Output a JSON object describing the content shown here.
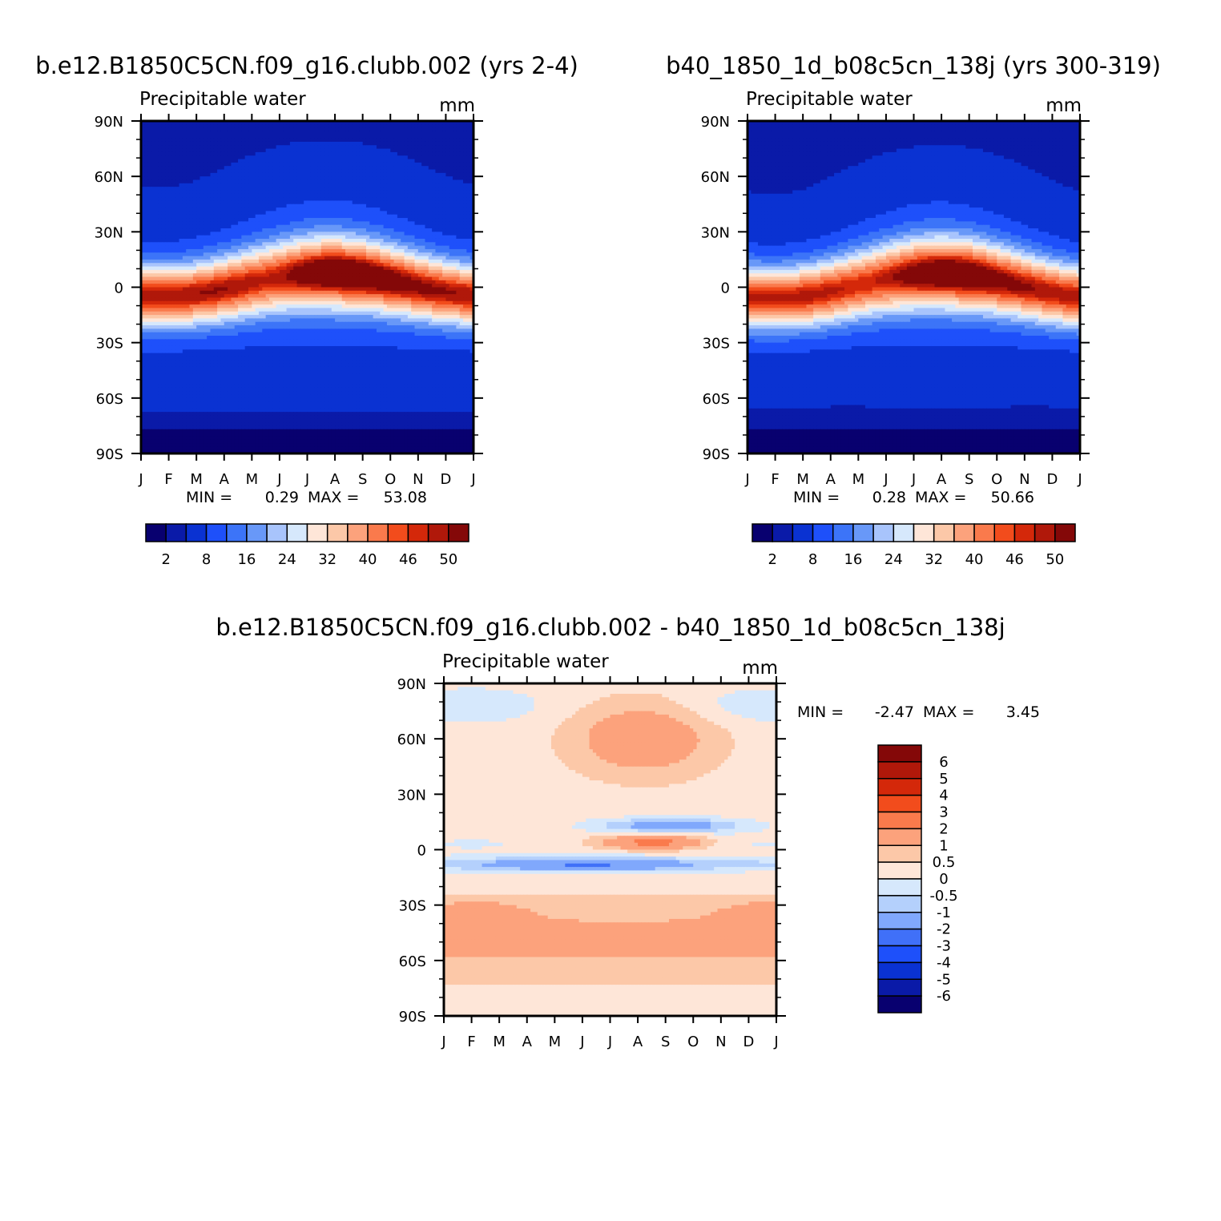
{
  "header": {
    "left_title": "b.e12.B1850C5CN.f09_g16.clubb.002 (yrs 2-4)",
    "right_title": "b40_1850_1d_b08c5cn_138j (yrs 300-319)",
    "diff_title": "b.e12.B1850C5CN.f09_g16.clubb.002 - b40_1850_1d_b08c5cn_138j"
  },
  "colors": {
    "abs": [
      "#08006f",
      "#0a1aa8",
      "#0a32d2",
      "#1e50fa",
      "#3c74f8",
      "#6898f8",
      "#a8c4fc",
      "#d6e8fc",
      "#fee6d8",
      "#fcc8a8",
      "#fca27c",
      "#fa7a4c",
      "#f24c1c",
      "#d4280a",
      "#b0180a",
      "#840808"
    ],
    "diff": [
      "#08006f",
      "#0a1aa8",
      "#0a32d2",
      "#1e50fa",
      "#4070f8",
      "#80a8fc",
      "#b4d0fc",
      "#d6e8fc",
      "#fee6d8",
      "#fcc8a8",
      "#fca27c",
      "#fa7a4c",
      "#f24c1c",
      "#d4280a",
      "#b0180a",
      "#840808"
    ]
  },
  "chart_data": [
    {
      "type": "heatmap",
      "title": "Precipitable water",
      "units": "mm",
      "x_ticks": [
        "J",
        "F",
        "M",
        "A",
        "M",
        "J",
        "J",
        "A",
        "S",
        "O",
        "N",
        "D",
        "J"
      ],
      "y_ticks": [
        "90N",
        "60N",
        "30N",
        "0",
        "30S",
        "60S",
        "90S"
      ],
      "ylim": [
        -90,
        90
      ],
      "min_label": "MIN =",
      "min_value": "0.29",
      "max_label": "MAX =",
      "max_value": "53.08",
      "colorbar_labels": [
        "2",
        "8",
        "16",
        "24",
        "32",
        "40",
        "46",
        "50"
      ],
      "levels": [
        0,
        2,
        4,
        8,
        12,
        16,
        20,
        24,
        28,
        32,
        36,
        40,
        44,
        46,
        48,
        50,
        52
      ]
    },
    {
      "type": "heatmap",
      "title": "Precipitable water",
      "units": "mm",
      "x_ticks": [
        "J",
        "F",
        "M",
        "A",
        "M",
        "J",
        "J",
        "A",
        "S",
        "O",
        "N",
        "D",
        "J"
      ],
      "y_ticks": [
        "90N",
        "60N",
        "30N",
        "0",
        "30S",
        "60S",
        "90S"
      ],
      "ylim": [
        -90,
        90
      ],
      "min_label": "MIN =",
      "min_value": "0.28",
      "max_label": "MAX =",
      "max_value": "50.66",
      "colorbar_labels": [
        "2",
        "8",
        "16",
        "24",
        "32",
        "40",
        "46",
        "50"
      ],
      "levels": [
        0,
        2,
        4,
        8,
        12,
        16,
        20,
        24,
        28,
        32,
        36,
        40,
        44,
        46,
        48,
        50,
        52
      ]
    },
    {
      "type": "heatmap",
      "title": "Precipitable water",
      "units": "mm",
      "x_ticks": [
        "J",
        "F",
        "M",
        "A",
        "M",
        "J",
        "J",
        "A",
        "S",
        "O",
        "N",
        "D",
        "J"
      ],
      "y_ticks": [
        "90N",
        "60N",
        "30N",
        "0",
        "30S",
        "60S",
        "90S"
      ],
      "ylim": [
        -90,
        90
      ],
      "min_label": "MIN =",
      "min_value": "-2.47",
      "max_label": "MAX =",
      "max_value": "3.45",
      "colorbar_labels": [
        "6",
        "5",
        "4",
        "3",
        "2",
        "1",
        "0.5",
        "0",
        "-0.5",
        "-1",
        "-2",
        "-3",
        "-4",
        "-5",
        "-6"
      ],
      "levels": [
        -7,
        -6,
        -5,
        -4,
        -3,
        -2,
        -1,
        -0.5,
        0,
        0.5,
        1,
        2,
        3,
        4,
        5,
        6,
        7
      ]
    }
  ]
}
